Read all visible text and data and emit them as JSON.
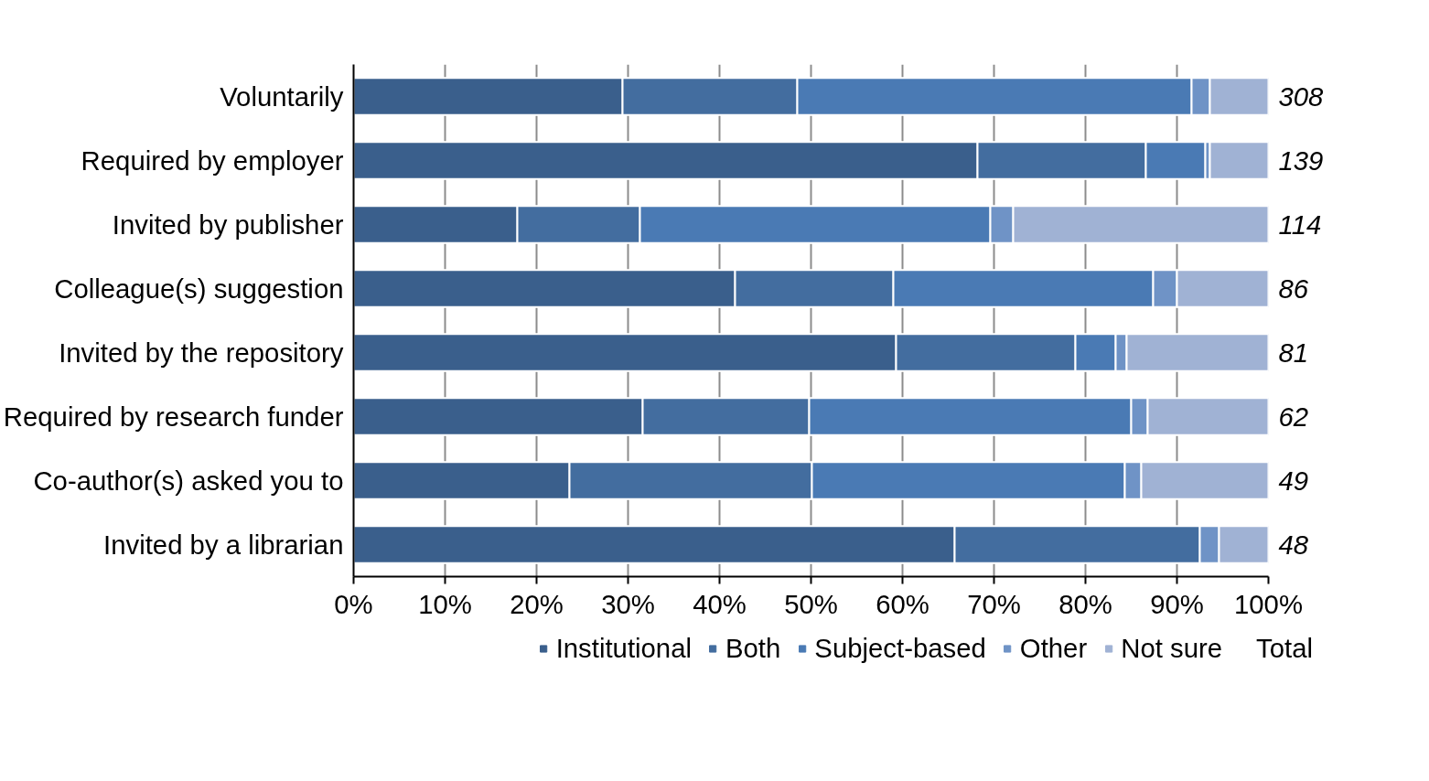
{
  "chart_data": {
    "type": "bar",
    "orientation": "horizontal",
    "stacked": true,
    "categories": [
      "Voluntarily",
      "Required by employer",
      "Invited by publisher",
      "Colleague(s) suggestion",
      "Invited by the repository",
      "Required by research funder",
      "Co-author(s) asked you to",
      "Invited by a librarian"
    ],
    "series": [
      {
        "name": "Institutional",
        "color": "#3a5f8c",
        "values": [
          29.4,
          68.2,
          17.9,
          41.7,
          59.3,
          31.6,
          23.6,
          65.7
        ]
      },
      {
        "name": "Both",
        "color": "#436d9f",
        "values": [
          19.1,
          18.4,
          13.4,
          17.3,
          19.6,
          18.2,
          26.5,
          26.8
        ]
      },
      {
        "name": "Subject-based",
        "color": "#4a7ab4",
        "values": [
          43.1,
          6.5,
          38.3,
          28.4,
          4.4,
          35.2,
          34.2,
          null
        ]
      },
      {
        "name": "Other",
        "color": "#6f93c6",
        "values": [
          2.0,
          0.5,
          2.5,
          2.6,
          1.2,
          1.8,
          1.8,
          2.1
        ]
      },
      {
        "name": "Not sure",
        "color": "#a0b2d4",
        "values": [
          6.4,
          6.4,
          27.9,
          10.0,
          15.5,
          13.2,
          13.9,
          5.4
        ]
      }
    ],
    "annotations": [
      "Total",
      "308",
      "139",
      "114",
      "86",
      "81",
      "62",
      "49",
      "48"
    ],
    "xlim": [
      0,
      100
    ],
    "xticks": [
      {
        "value": 0,
        "label": "0%"
      },
      {
        "value": 10,
        "label": "10%"
      },
      {
        "value": 20,
        "label": "20%"
      },
      {
        "value": 30,
        "label": "30%"
      },
      {
        "value": 40,
        "label": "40%"
      },
      {
        "value": 50,
        "label": "50%"
      },
      {
        "value": 60,
        "label": "60%"
      },
      {
        "value": 70,
        "label": "70%"
      },
      {
        "value": 80,
        "label": "80%"
      },
      {
        "value": 90,
        "label": "90%"
      },
      {
        "value": 100,
        "label": "100%"
      }
    ],
    "grid": "x",
    "legend": "bottom"
  }
}
